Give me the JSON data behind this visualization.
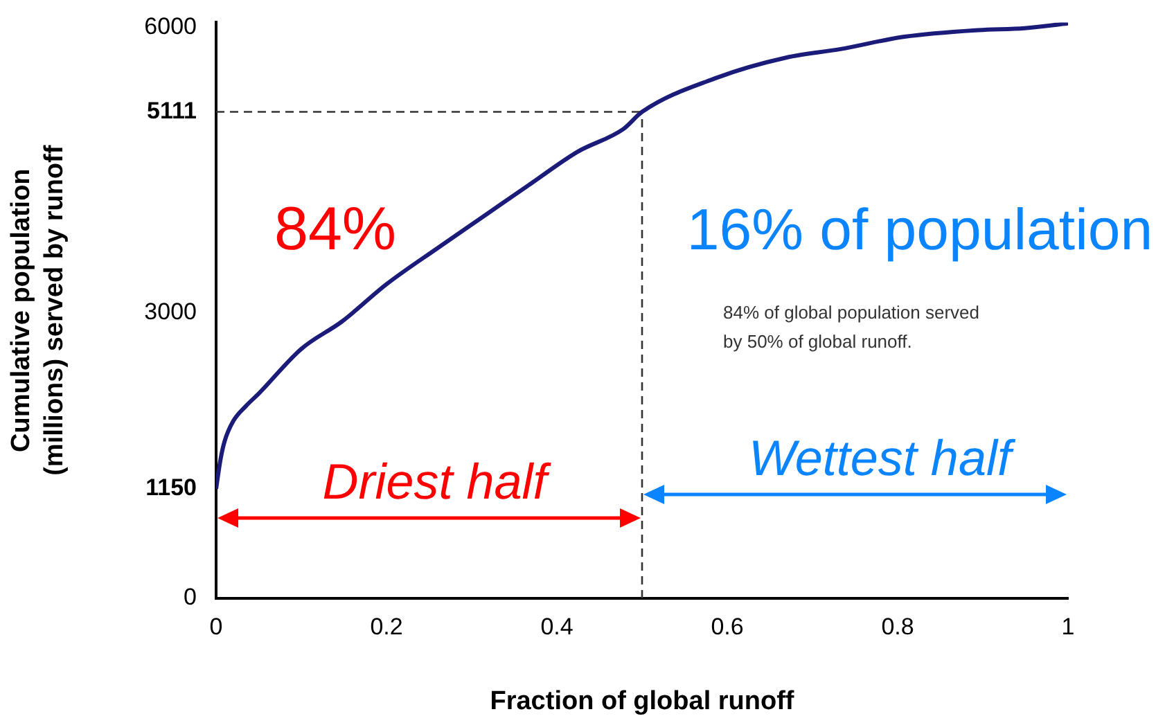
{
  "chart_data": {
    "type": "line",
    "xlabel": "Fraction of global runoff",
    "ylabel": "Cumulative population (millions) served by runoff",
    "x": [
      0,
      0.005,
      0.01,
      0.02,
      0.035,
      0.05,
      0.1,
      0.148,
      0.2,
      0.26,
      0.315,
      0.37,
      0.424,
      0.478,
      0.5,
      0.588,
      0.669,
      0.733,
      0.808,
      0.895,
      0.949,
      1
    ],
    "series": [
      {
        "color": "#1b1b7a",
        "values": [
          1150,
          1450,
          1650,
          1860,
          2020,
          2150,
          2620,
          2910,
          3300,
          3680,
          4020,
          4360,
          4690,
          4930,
          5111,
          5470,
          5680,
          5770,
          5900,
          5970,
          5990,
          6040
        ]
      }
    ],
    "xlim": [
      0,
      1
    ],
    "xticks": [
      0,
      0.2,
      0.4,
      0.6,
      0.8,
      1
    ],
    "ylim": [
      0,
      6050
    ],
    "yticks": [
      0,
      1150,
      3000,
      5111,
      6000
    ],
    "ref_lines": [
      {
        "axis": "x",
        "value": 0.5,
        "color": "#333333",
        "line_style": "dashed"
      },
      {
        "axis": "y",
        "value": 5111,
        "color": "#333333",
        "line_style": "dashed"
      }
    ],
    "annotations": [
      "84%",
      "16% of population",
      "84% of global population served by 50% of global runoff.",
      "Driest half",
      "Wettest half"
    ],
    "grid": false,
    "legend": false,
    "marker": "none",
    "line_style": "solid"
  }
}
